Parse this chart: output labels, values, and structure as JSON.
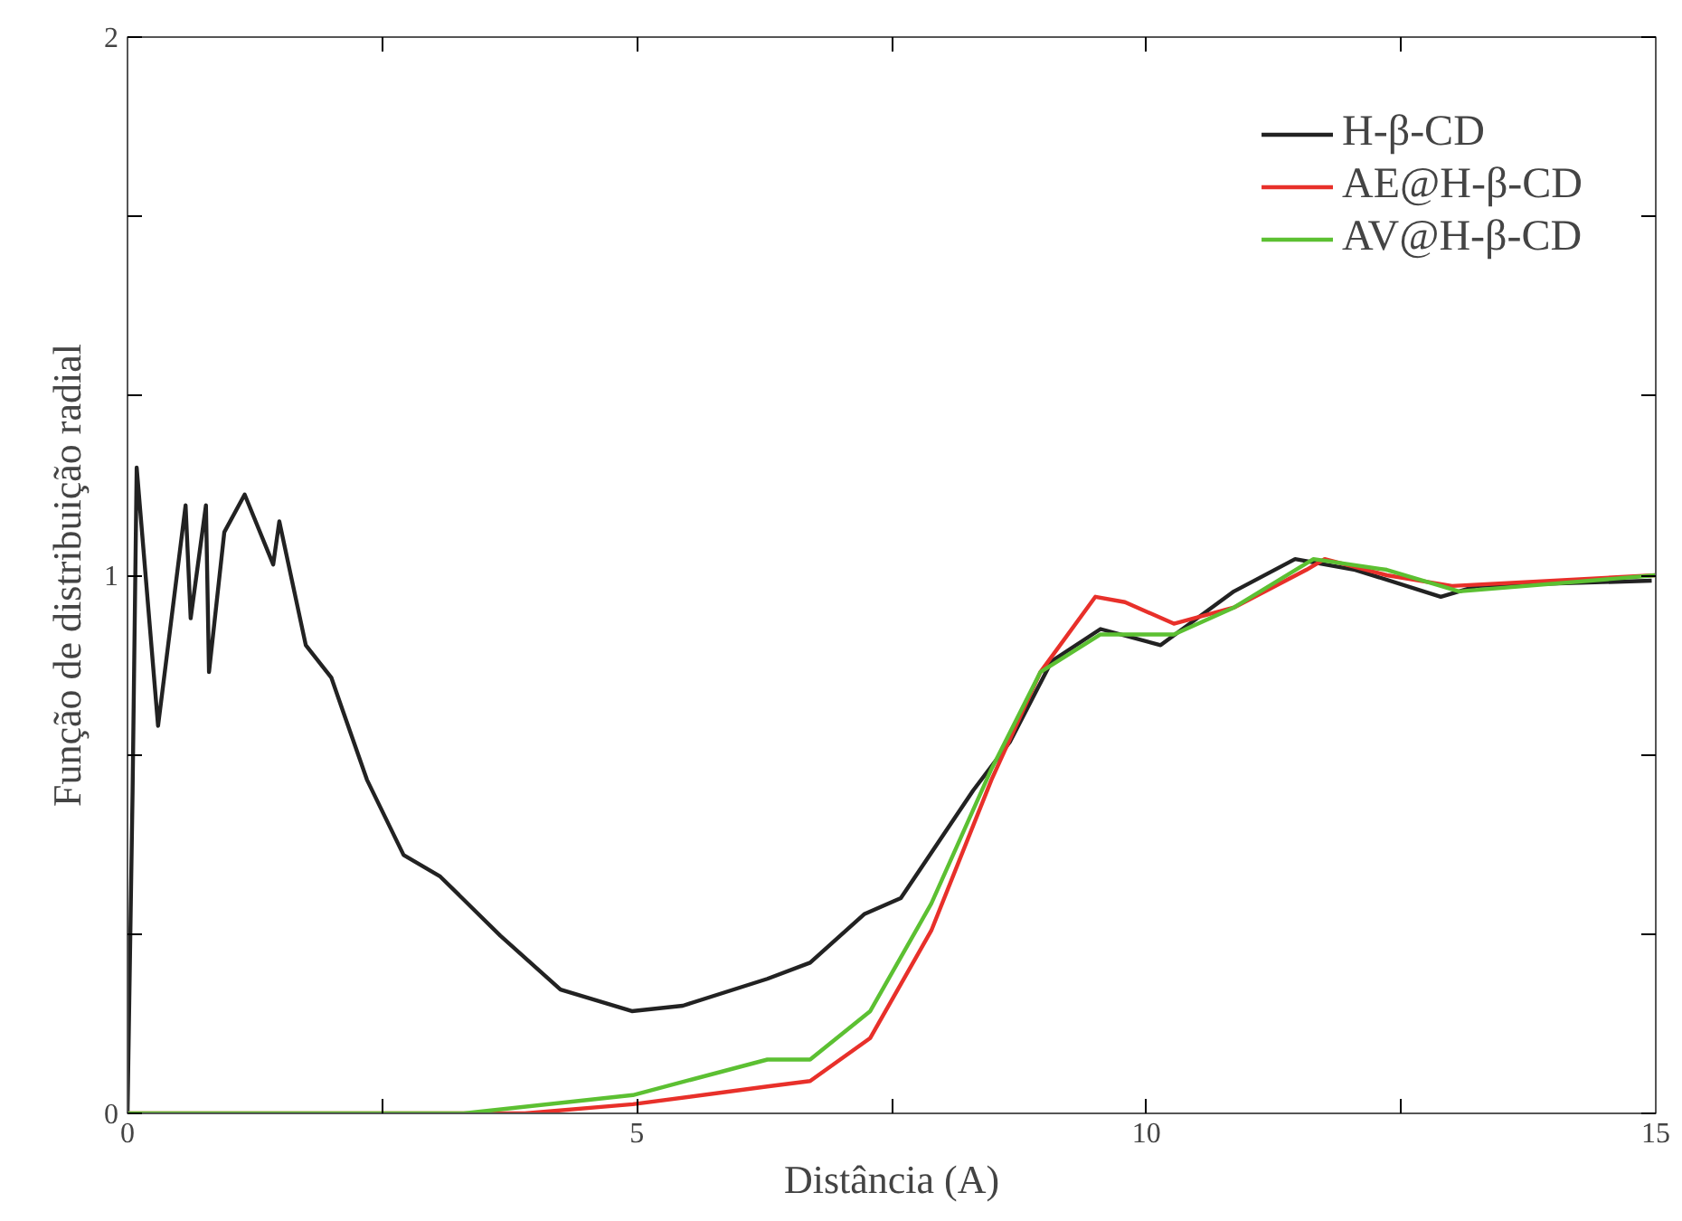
{
  "chart_data": {
    "type": "line",
    "xlabel": "Distância (A)",
    "ylabel": "Função de distribuição radial",
    "xlim": [
      0,
      15
    ],
    "ylim": [
      0,
      2
    ],
    "xticks": [
      0,
      {
        "value": 2.5,
        "label": null
      },
      5,
      {
        "value": 7.5,
        "label": null
      },
      10,
      {
        "value": 12.5,
        "label": null
      },
      15
    ],
    "yticks": [
      0,
      {
        "value": 0.333,
        "label": null
      },
      {
        "value": 0.667,
        "label": null
      },
      1,
      {
        "value": 1.333,
        "label": null
      },
      {
        "value": 1.667,
        "label": null
      },
      2
    ],
    "grid": false,
    "legend": "top right",
    "line_style": "solid",
    "marker": "none",
    "series": [
      {
        "name": "H-β-CD",
        "color": "#222222",
        "x": [
          0,
          0.05,
          0.09,
          0.3,
          0.57,
          0.62,
          0.77,
          0.8,
          0.95,
          1.15,
          1.43,
          1.49,
          1.75,
          2.0,
          2.11,
          2.35,
          2.71,
          3.07,
          3.66,
          4.25,
          4.95,
          5.45,
          6.28,
          6.7,
          7.23,
          7.59,
          8.3,
          8.66,
          9.07,
          9.55,
          10.14,
          10.86,
          11.46,
          12.05,
          12.89,
          13.25,
          14.96
        ],
        "values": [
          0,
          0.6,
          1.2,
          0.72,
          1.13,
          0.92,
          1.13,
          0.82,
          1.08,
          1.15,
          1.02,
          1.1,
          0.87,
          0.81,
          0.75,
          0.62,
          0.48,
          0.44,
          0.33,
          0.23,
          0.19,
          0.2,
          0.25,
          0.28,
          0.37,
          0.4,
          0.6,
          0.69,
          0.84,
          0.9,
          0.87,
          0.97,
          1.03,
          1.01,
          0.96,
          0.98,
          0.99
        ]
      },
      {
        "name": "AE@H-β-CD",
        "color": "#e8302a",
        "x": [
          0,
          3.9,
          4.96,
          6.28,
          6.7,
          7.29,
          7.89,
          8.48,
          8.96,
          9.5,
          9.79,
          10.27,
          10.86,
          11.57,
          11.75,
          12.36,
          13.0,
          15
        ],
        "values": [
          0,
          0,
          0.017,
          0.05,
          0.06,
          0.14,
          0.34,
          0.62,
          0.82,
          0.96,
          0.95,
          0.91,
          0.94,
          1.01,
          1.03,
          1.0,
          0.98,
          1.0
        ]
      },
      {
        "name": "AV@H-β-CD",
        "color": "#5cc032",
        "x": [
          0,
          3.3,
          4.96,
          6.28,
          6.7,
          7.29,
          7.89,
          8.48,
          8.96,
          9.55,
          10.27,
          10.86,
          11.64,
          12.36,
          13.07,
          15
        ],
        "values": [
          0,
          0,
          0.034,
          0.1,
          0.1,
          0.19,
          0.39,
          0.64,
          0.82,
          0.89,
          0.89,
          0.94,
          1.03,
          1.01,
          0.97,
          1.0
        ]
      }
    ]
  }
}
